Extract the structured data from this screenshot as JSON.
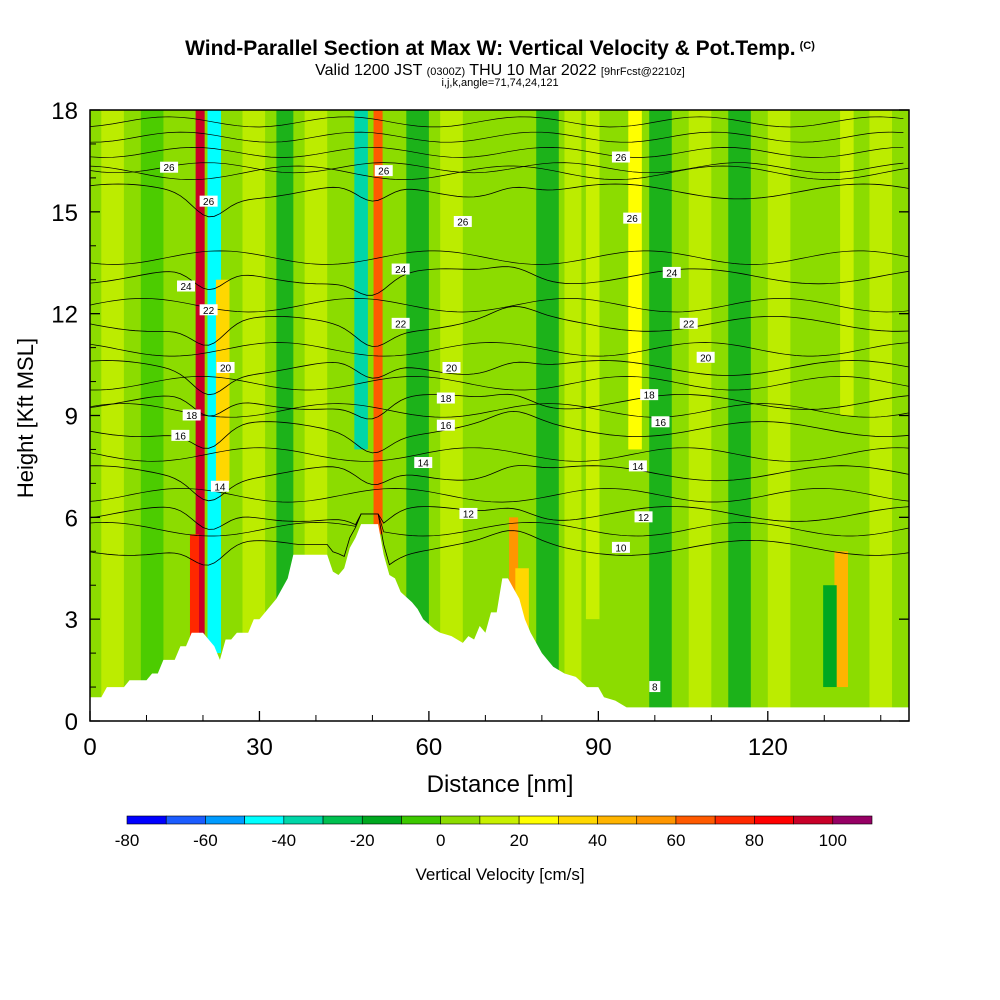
{
  "header": {
    "title": "Wind-Parallel Section at Max W: Vertical Velocity & Pot.Temp.",
    "copyright": "(C)",
    "valid_prefix": "Valid 1200 JST",
    "valid_utc": "(0300Z)",
    "valid_date": "THU 10 Mar 2022",
    "forecast": "[9hrFcst@2210z]",
    "indices": "i,j,k,angle=71,74,24,121"
  },
  "chart_data": {
    "type": "heatmap",
    "xlabel": "Distance [nm]",
    "ylabel": "Height [Kft MSL]",
    "xlim": [
      0,
      145
    ],
    "ylim": [
      0,
      18
    ],
    "xticks": [
      0,
      30,
      60,
      90,
      120
    ],
    "yticks": [
      0,
      3,
      6,
      9,
      12,
      15,
      18
    ],
    "colorbar": {
      "label": "Vertical Velocity [cm/s]",
      "tick_labels": [
        -80,
        -60,
        -40,
        -20,
        0,
        20,
        40,
        60,
        80,
        100
      ],
      "bounds": [
        -80,
        -70,
        -60,
        -50,
        -40,
        -30,
        -20,
        -10,
        0,
        10,
        20,
        30,
        40,
        50,
        60,
        70,
        80,
        90,
        100,
        110
      ],
      "colors": [
        "#0000ff",
        "#1b5cff",
        "#009bff",
        "#00ffff",
        "#00d6a8",
        "#00c050",
        "#00a820",
        "#3cc800",
        "#8cdc00",
        "#c8f000",
        "#ffff00",
        "#ffd700",
        "#ffb400",
        "#ff9600",
        "#ff5a00",
        "#ff2800",
        "#ff0000",
        "#c80028",
        "#960064"
      ]
    },
    "w_columns": [
      {
        "x": 19.5,
        "value": 95,
        "zmin": 0.5,
        "zmax": 18
      },
      {
        "x": 18.5,
        "value": 70,
        "zmin": 2,
        "zmax": 5.5
      },
      {
        "x": 22,
        "value": -45,
        "zmin": 2,
        "zmax": 18
      },
      {
        "x": 23.5,
        "value": 30,
        "zmin": 7,
        "zmax": 13
      },
      {
        "x": 48,
        "value": -40,
        "zmin": 8,
        "zmax": 18
      },
      {
        "x": 51,
        "value": 65,
        "zmin": 5.5,
        "zmax": 18
      },
      {
        "x": 75,
        "value": 55,
        "zmin": 3,
        "zmax": 6
      },
      {
        "x": 76.5,
        "value": 30,
        "zmin": 0.5,
        "zmax": 4.5
      },
      {
        "x": 89,
        "value": 15,
        "zmin": 3,
        "zmax": 18
      },
      {
        "x": 96.5,
        "value": 25,
        "zmin": 8,
        "zmax": 18
      },
      {
        "x": 133,
        "value": 40,
        "zmin": 1,
        "zmax": 5
      },
      {
        "x": 131,
        "value": -20,
        "zmin": 1,
        "zmax": 4
      },
      {
        "x": 134,
        "value": 15,
        "zmin": 9,
        "zmax": 18
      }
    ],
    "terrain_kft": [
      [
        0,
        0.7
      ],
      [
        2,
        0.7
      ],
      [
        3,
        1.0
      ],
      [
        6,
        1.0
      ],
      [
        7,
        1.2
      ],
      [
        10,
        1.2
      ],
      [
        11,
        1.4
      ],
      [
        12,
        1.4
      ],
      [
        13,
        1.8
      ],
      [
        15,
        1.8
      ],
      [
        16,
        2.2
      ],
      [
        17,
        2.2
      ],
      [
        18,
        2.6
      ],
      [
        20,
        2.6
      ],
      [
        21,
        2.4
      ],
      [
        22,
        2.2
      ],
      [
        23,
        1.8
      ],
      [
        24,
        2.4
      ],
      [
        25,
        2.4
      ],
      [
        26,
        2.6
      ],
      [
        28,
        2.6
      ],
      [
        29,
        3.0
      ],
      [
        30,
        3.0
      ],
      [
        31,
        3.2
      ],
      [
        33,
        3.6
      ],
      [
        35,
        4.2
      ],
      [
        36,
        4.9
      ],
      [
        42,
        4.9
      ],
      [
        43,
        4.4
      ],
      [
        44,
        4.3
      ],
      [
        45,
        4.5
      ],
      [
        46,
        5.1
      ],
      [
        47,
        5.4
      ],
      [
        48,
        5.8
      ],
      [
        51,
        5.8
      ],
      [
        52,
        4.9
      ],
      [
        53,
        4.3
      ],
      [
        54,
        4.2
      ],
      [
        55,
        3.8
      ],
      [
        57,
        3.5
      ],
      [
        58,
        3.3
      ],
      [
        59,
        3.0
      ],
      [
        61,
        2.7
      ],
      [
        62,
        2.6
      ],
      [
        64,
        2.5
      ],
      [
        66,
        2.3
      ],
      [
        67,
        2.5
      ],
      [
        68,
        2.4
      ],
      [
        69,
        2.8
      ],
      [
        70,
        2.6
      ],
      [
        71,
        3.2
      ],
      [
        72,
        3.2
      ],
      [
        73,
        4.2
      ],
      [
        74,
        4.2
      ],
      [
        75,
        3.9
      ],
      [
        76,
        3.6
      ],
      [
        77,
        3.0
      ],
      [
        78,
        2.6
      ],
      [
        80,
        2.0
      ],
      [
        82,
        1.6
      ],
      [
        84,
        1.4
      ],
      [
        86,
        1.3
      ],
      [
        88,
        1.0
      ],
      [
        90,
        1.0
      ],
      [
        91,
        0.7
      ],
      [
        93,
        0.6
      ],
      [
        95,
        0.4
      ],
      [
        145,
        0.4
      ]
    ],
    "theta_contours": [
      10,
      12,
      14,
      16,
      18,
      20,
      22,
      24,
      26
    ],
    "theta_base_kft": {
      "10": 5.1,
      "12": 6.1,
      "14": 7.3,
      "16": 8.6,
      "18": 9.4,
      "20": 10.4,
      "22": 11.7,
      "24": 13.1,
      "26": 15.6
    },
    "contour_labels": [
      {
        "text": "26",
        "x": 14,
        "z": 16.3
      },
      {
        "text": "26",
        "x": 21,
        "z": 15.3
      },
      {
        "text": "24",
        "x": 17,
        "z": 12.8
      },
      {
        "text": "22",
        "x": 21,
        "z": 12.1
      },
      {
        "text": "20",
        "x": 24,
        "z": 10.4
      },
      {
        "text": "18",
        "x": 18,
        "z": 9.0
      },
      {
        "text": "16",
        "x": 16,
        "z": 8.4
      },
      {
        "text": "14",
        "x": 23,
        "z": 6.9
      },
      {
        "text": "26",
        "x": 52,
        "z": 16.2
      },
      {
        "text": "24",
        "x": 55,
        "z": 13.3
      },
      {
        "text": "22",
        "x": 55,
        "z": 11.7
      },
      {
        "text": "26",
        "x": 66,
        "z": 14.7
      },
      {
        "text": "20",
        "x": 64,
        "z": 10.4
      },
      {
        "text": "18",
        "x": 63,
        "z": 9.5
      },
      {
        "text": "16",
        "x": 63,
        "z": 8.7
      },
      {
        "text": "14",
        "x": 59,
        "z": 7.6
      },
      {
        "text": "12",
        "x": 67,
        "z": 6.1
      },
      {
        "text": "26",
        "x": 94,
        "z": 16.6
      },
      {
        "text": "26",
        "x": 96,
        "z": 14.8
      },
      {
        "text": "24",
        "x": 103,
        "z": 13.2
      },
      {
        "text": "22",
        "x": 106,
        "z": 11.7
      },
      {
        "text": "20",
        "x": 109,
        "z": 10.7
      },
      {
        "text": "18",
        "x": 99,
        "z": 9.6
      },
      {
        "text": "16",
        "x": 101,
        "z": 8.8
      },
      {
        "text": "14",
        "x": 97,
        "z": 7.5
      },
      {
        "text": "12",
        "x": 98,
        "z": 6.0
      },
      {
        "text": "10",
        "x": 94,
        "z": 5.1
      },
      {
        "text": "8",
        "x": 100,
        "z": 1.0
      }
    ]
  }
}
